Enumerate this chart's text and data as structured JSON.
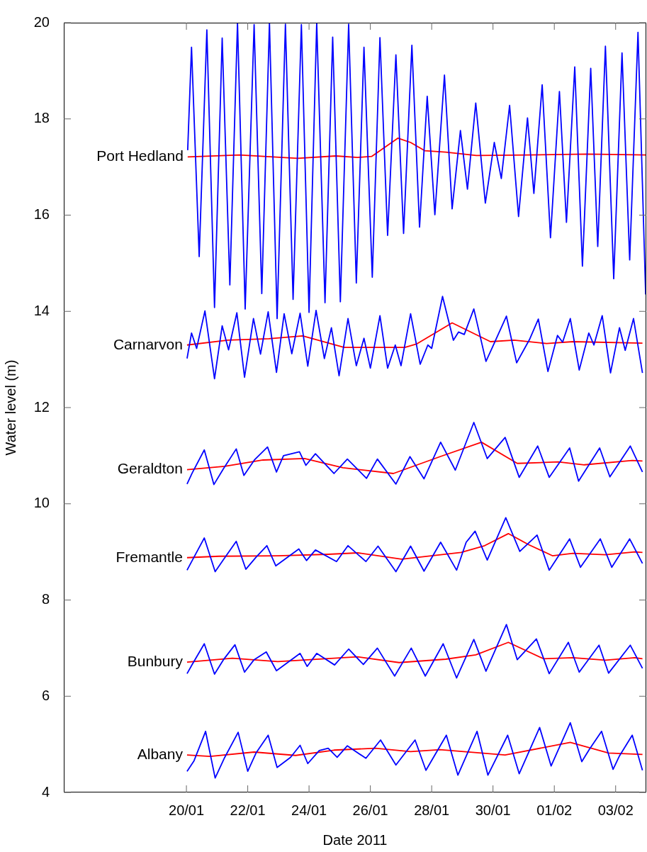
{
  "chart_data": {
    "type": "line",
    "xlabel": "Date 2011",
    "ylabel": "Water level (m)",
    "legend": false,
    "xlim": [
      "2011-01-16",
      "2011-02-04"
    ],
    "xticks": [
      {
        "value": "2011-01-20",
        "label": "20/01"
      },
      {
        "value": "2011-01-22",
        "label": "22/01"
      },
      {
        "value": "2011-01-24",
        "label": "24/01"
      },
      {
        "value": "2011-01-26",
        "label": "26/01"
      },
      {
        "value": "2011-01-28",
        "label": "28/01"
      },
      {
        "value": "2011-01-30",
        "label": "30/01"
      },
      {
        "value": "2011-02-01",
        "label": "01/02"
      },
      {
        "value": "2011-02-03",
        "label": "03/02"
      }
    ],
    "ylim": [
      4,
      20
    ],
    "yticks": [
      4,
      6,
      8,
      10,
      12,
      14,
      16,
      18,
      20
    ],
    "series": [
      {
        "color": "#0000ff",
        "x": [
          "2011-01-20T01:00",
          "2011-01-20T04:00",
          "2011-01-20T10:00",
          "2011-01-20T16:00",
          "2011-01-20T22:00",
          "2011-01-21T04:00",
          "2011-01-21T10:00",
          "2011-01-21T16:00",
          "2011-01-21T22:00",
          "2011-01-22T05:00",
          "2011-01-22T11:00",
          "2011-01-22T17:00",
          "2011-01-22T23:00",
          "2011-01-23T05:30",
          "2011-01-23T11:30",
          "2011-01-23T18:00",
          "2011-01-24T00:00",
          "2011-01-24T06:00",
          "2011-01-24T12:30",
          "2011-01-24T18:30",
          "2011-01-25T00:30",
          "2011-01-25T07:00",
          "2011-01-25T13:00",
          "2011-01-25T19:00",
          "2011-01-26T01:30",
          "2011-01-26T07:30",
          "2011-01-26T13:30",
          "2011-01-26T20:00",
          "2011-01-27T02:00",
          "2011-01-27T08:30",
          "2011-01-27T14:30",
          "2011-01-27T20:30",
          "2011-01-28T02:30",
          "2011-01-28T10:00",
          "2011-01-28T16:00",
          "2011-01-28T22:30",
          "2011-01-29T04:00",
          "2011-01-29T10:30",
          "2011-01-29T18:00",
          "2011-01-30T01:00",
          "2011-01-30T06:30",
          "2011-01-30T13:00",
          "2011-01-30T20:00",
          "2011-01-31T03:00",
          "2011-01-31T08:00",
          "2011-01-31T14:30",
          "2011-01-31T21:00",
          "2011-02-01T04:00",
          "2011-02-01T09:30",
          "2011-02-01T16:00",
          "2011-02-01T22:00",
          "2011-02-02T04:30",
          "2011-02-02T10:00",
          "2011-02-02T16:00",
          "2011-02-02T22:30",
          "2011-02-03T05:00",
          "2011-02-03T11:00",
          "2011-02-03T17:30",
          "2011-02-03T23:30"
        ],
        "values": [
          17.35,
          19.49,
          15.14,
          19.85,
          14.08,
          19.68,
          14.55,
          20.0,
          14.05,
          19.96,
          14.37,
          20.0,
          13.85,
          19.97,
          14.25,
          19.96,
          13.98,
          20.0,
          14.18,
          19.7,
          14.2,
          19.97,
          14.59,
          19.49,
          14.71,
          19.69,
          15.58,
          19.33,
          15.62,
          19.53,
          15.75,
          18.47,
          16.01,
          18.91,
          16.13,
          17.76,
          16.54,
          18.33,
          16.25,
          17.51,
          16.76,
          18.28,
          15.97,
          18.02,
          16.45,
          18.71,
          15.53,
          18.57,
          15.85,
          19.08,
          14.94,
          19.05,
          15.35,
          19.51,
          14.68,
          19.37,
          15.07,
          19.8,
          14.35
        ]
      },
      {
        "name": "Port Hedland",
        "color": "#ff0000",
        "x": [
          "2011-01-20T01:00",
          "2011-01-21T17:30",
          "2011-01-23T15:00",
          "2011-01-24T21:00",
          "2011-01-25T14:00",
          "2011-01-26T01:00",
          "2011-01-26T21:30",
          "2011-01-27T07:30",
          "2011-01-27T18:30",
          "2011-01-28T11:00",
          "2011-01-29T11:00",
          "2011-01-31T04:00",
          "2011-02-02T02:00",
          "2011-02-03T23:30"
        ],
        "values": [
          17.21,
          17.25,
          17.18,
          17.23,
          17.2,
          17.22,
          17.6,
          17.51,
          17.34,
          17.31,
          17.24,
          17.25,
          17.27,
          17.25
        ]
      },
      {
        "color": "#0000ff",
        "x": [
          "2011-01-20T00:30",
          "2011-01-20T04:00",
          "2011-01-20T08:00",
          "2011-01-20T14:30",
          "2011-01-20T22:00",
          "2011-01-21T04:00",
          "2011-01-21T09:00",
          "2011-01-21T15:30",
          "2011-01-21T21:30",
          "2011-01-22T04:30",
          "2011-01-22T10:00",
          "2011-01-22T16:00",
          "2011-01-22T22:30",
          "2011-01-23T04:30",
          "2011-01-23T10:30",
          "2011-01-23T17:00",
          "2011-01-23T23:00",
          "2011-01-24T05:30",
          "2011-01-24T12:00",
          "2011-01-24T17:30",
          "2011-01-24T23:30",
          "2011-01-25T06:30",
          "2011-01-25T13:00",
          "2011-01-25T19:00",
          "2011-01-26T00:00",
          "2011-01-26T07:30",
          "2011-01-26T13:30",
          "2011-01-26T19:30",
          "2011-01-27T00:00",
          "2011-01-27T07:30",
          "2011-01-27T15:00",
          "2011-01-27T21:00",
          "2011-01-28T00:00",
          "2011-01-28T08:30",
          "2011-01-28T17:00",
          "2011-01-28T21:00",
          "2011-01-29T01:30",
          "2011-01-29T09:00",
          "2011-01-29T18:30",
          "2011-01-30T00:00",
          "2011-01-30T10:30",
          "2011-01-30T18:30",
          "2011-01-31T04:30",
          "2011-01-31T11:30",
          "2011-01-31T19:00",
          "2011-02-01T02:30",
          "2011-02-01T06:30",
          "2011-02-01T12:30",
          "2011-02-01T19:30",
          "2011-02-02T03:00",
          "2011-02-02T07:00",
          "2011-02-02T13:30",
          "2011-02-02T20:00",
          "2011-02-03T03:00",
          "2011-02-03T07:30",
          "2011-02-03T14:00",
          "2011-02-03T21:00"
        ],
        "values": [
          13.02,
          13.55,
          13.23,
          14.01,
          12.6,
          13.7,
          13.2,
          13.97,
          12.63,
          13.85,
          13.11,
          13.99,
          12.73,
          13.95,
          13.12,
          13.96,
          12.86,
          14.02,
          13.02,
          13.66,
          12.66,
          13.85,
          12.87,
          13.44,
          12.82,
          13.91,
          12.82,
          13.3,
          12.87,
          13.95,
          12.9,
          13.3,
          13.23,
          14.31,
          13.4,
          13.57,
          13.52,
          14.05,
          12.96,
          13.28,
          13.9,
          12.93,
          13.41,
          13.84,
          12.75,
          13.5,
          13.36,
          13.85,
          12.78,
          13.55,
          13.3,
          13.91,
          12.72,
          13.66,
          13.19,
          13.85,
          12.72
        ]
      },
      {
        "name": "Carnarvon",
        "color": "#ff0000",
        "x": [
          "2011-01-20T00:30",
          "2011-01-21T08:30",
          "2011-01-22T16:30",
          "2011-01-23T19:00",
          "2011-01-25T03:30",
          "2011-01-27T03:00",
          "2011-01-27T12:00",
          "2011-01-28T16:00",
          "2011-01-29T22:00",
          "2011-01-30T16:30",
          "2011-01-31T18:00",
          "2011-02-01T14:30",
          "2011-02-03T21:00"
        ],
        "values": [
          13.3,
          13.4,
          13.43,
          13.49,
          13.25,
          13.25,
          13.32,
          13.76,
          13.37,
          13.4,
          13.33,
          13.37,
          13.34
        ]
      },
      {
        "color": "#0000ff",
        "x": [
          "2011-01-20T00:30",
          "2011-01-20T04:30",
          "2011-01-20T14:00",
          "2011-01-20T21:30",
          "2011-01-21T05:00",
          "2011-01-21T15:00",
          "2011-01-21T21:00",
          "2011-01-22T05:30",
          "2011-01-22T15:30",
          "2011-01-22T22:30",
          "2011-01-23T04:00",
          "2011-01-23T16:30",
          "2011-01-23T21:30",
          "2011-01-24T05:00",
          "2011-01-24T19:30",
          "2011-01-25T06:00",
          "2011-01-25T21:00",
          "2011-01-26T05:30",
          "2011-01-26T20:00",
          "2011-01-27T07:00",
          "2011-01-27T18:00",
          "2011-01-28T07:00",
          "2011-01-28T18:30",
          "2011-01-29T09:00",
          "2011-01-29T19:30",
          "2011-01-30T09:30",
          "2011-01-30T20:30",
          "2011-01-31T11:00",
          "2011-01-31T20:00",
          "2011-02-01T12:00",
          "2011-02-01T19:00",
          "2011-02-02T11:30",
          "2011-02-02T19:30",
          "2011-02-03T11:30",
          "2011-02-03T21:00"
        ],
        "values": [
          10.41,
          10.64,
          11.12,
          10.4,
          10.73,
          11.14,
          10.59,
          10.92,
          11.18,
          10.66,
          11.0,
          11.08,
          10.8,
          11.04,
          10.63,
          10.93,
          10.53,
          10.93,
          10.41,
          10.98,
          10.52,
          11.28,
          10.7,
          11.69,
          10.94,
          11.38,
          10.55,
          11.2,
          10.55,
          11.16,
          10.47,
          11.16,
          10.56,
          11.2,
          10.66
        ]
      },
      {
        "name": "Geraldton",
        "color": "#ff0000",
        "x": [
          "2011-01-20T00:30",
          "2011-01-21T06:00",
          "2011-01-22T12:00",
          "2011-01-23T20:30",
          "2011-01-25T02:30",
          "2011-01-26T18:00",
          "2011-01-28T06:30",
          "2011-01-29T15:00",
          "2011-01-30T19:00",
          "2011-02-01T03:00",
          "2011-02-01T23:30",
          "2011-02-03T13:00",
          "2011-02-03T21:00"
        ],
        "values": [
          10.71,
          10.78,
          10.91,
          10.94,
          10.75,
          10.63,
          10.98,
          11.28,
          10.84,
          10.87,
          10.81,
          10.9,
          10.89
        ]
      },
      {
        "color": "#0000ff",
        "x": [
          "2011-01-20T00:30",
          "2011-01-20T04:30",
          "2011-01-20T14:00",
          "2011-01-20T22:30",
          "2011-01-21T05:00",
          "2011-01-21T15:00",
          "2011-01-21T22:30",
          "2011-01-22T06:30",
          "2011-01-22T15:00",
          "2011-01-22T22:00",
          "2011-01-23T16:00",
          "2011-01-23T22:00",
          "2011-01-24T05:00",
          "2011-01-24T21:30",
          "2011-01-25T06:30",
          "2011-01-25T20:30",
          "2011-01-26T06:00",
          "2011-01-26T20:00",
          "2011-01-27T07:30",
          "2011-01-27T18:00",
          "2011-01-28T07:00",
          "2011-01-28T19:30",
          "2011-01-29T03:00",
          "2011-01-29T10:00",
          "2011-01-29T19:30",
          "2011-01-30T10:00",
          "2011-01-30T21:00",
          "2011-01-31T10:30",
          "2011-01-31T20:00",
          "2011-02-01T12:00",
          "2011-02-01T20:30",
          "2011-02-02T12:00",
          "2011-02-02T21:00",
          "2011-02-03T11:00",
          "2011-02-03T21:00"
        ],
        "values": [
          8.62,
          8.82,
          9.29,
          8.59,
          8.84,
          9.22,
          8.64,
          8.89,
          9.13,
          8.71,
          9.06,
          8.82,
          9.04,
          8.8,
          9.13,
          8.8,
          9.12,
          8.59,
          9.12,
          8.6,
          9.2,
          8.62,
          9.2,
          9.43,
          8.83,
          9.71,
          9.01,
          9.35,
          8.62,
          9.27,
          8.68,
          9.27,
          8.68,
          9.27,
          8.76
        ]
      },
      {
        "name": "Fremantle",
        "color": "#ff0000",
        "x": [
          "2011-01-20T00:30",
          "2011-01-21T01:30",
          "2011-01-22T23:30",
          "2011-01-24T15:00",
          "2011-01-25T14:00",
          "2011-01-27T00:30",
          "2011-01-28T23:00",
          "2011-01-29T17:30",
          "2011-01-30T12:00",
          "2011-01-31T04:00",
          "2011-01-31T22:30",
          "2011-02-01T14:30",
          "2011-02-02T16:00",
          "2011-02-03T15:00",
          "2011-02-03T21:00"
        ],
        "values": [
          8.88,
          8.91,
          8.92,
          8.95,
          8.98,
          8.85,
          8.99,
          9.13,
          9.38,
          9.15,
          8.92,
          8.97,
          8.94,
          9.0,
          8.99
        ]
      },
      {
        "color": "#0000ff",
        "x": [
          "2011-01-20T00:30",
          "2011-01-20T04:30",
          "2011-01-20T14:00",
          "2011-01-20T22:00",
          "2011-01-21T05:00",
          "2011-01-21T14:00",
          "2011-01-21T21:30",
          "2011-01-22T05:00",
          "2011-01-22T14:30",
          "2011-01-22T22:30",
          "2011-01-23T17:00",
          "2011-01-23T22:30",
          "2011-01-24T06:00",
          "2011-01-24T20:00",
          "2011-01-25T07:00",
          "2011-01-25T18:30",
          "2011-01-26T05:30",
          "2011-01-26T19:00",
          "2011-01-27T08:00",
          "2011-01-27T19:00",
          "2011-01-28T09:00",
          "2011-01-28T19:30",
          "2011-01-29T09:00",
          "2011-01-29T18:30",
          "2011-01-30T10:30",
          "2011-01-30T19:00",
          "2011-01-31T10:00",
          "2011-01-31T20:00",
          "2011-02-01T11:00",
          "2011-02-01T19:30",
          "2011-02-02T11:00",
          "2011-02-02T18:30",
          "2011-02-03T11:30",
          "2011-02-03T21:00"
        ],
        "values": [
          6.47,
          6.66,
          7.09,
          6.46,
          6.76,
          7.07,
          6.5,
          6.76,
          6.92,
          6.53,
          6.89,
          6.62,
          6.89,
          6.65,
          6.98,
          6.66,
          7.0,
          6.42,
          7.0,
          6.42,
          7.09,
          6.38,
          7.18,
          6.52,
          7.49,
          6.76,
          7.19,
          6.47,
          7.12,
          6.5,
          7.06,
          6.48,
          7.06,
          6.58
        ]
      },
      {
        "name": "Bunbury",
        "color": "#ff0000",
        "x": [
          "2011-01-20T00:30",
          "2011-01-21T12:00",
          "2011-01-22T23:30",
          "2011-01-25T14:00",
          "2011-01-26T22:30",
          "2011-01-28T11:00",
          "2011-01-29T10:30",
          "2011-01-30T12:00",
          "2011-01-31T15:30",
          "2011-02-01T14:30",
          "2011-02-02T16:00",
          "2011-02-03T15:00",
          "2011-02-03T21:00"
        ],
        "values": [
          6.71,
          6.79,
          6.72,
          6.82,
          6.7,
          6.77,
          6.86,
          7.12,
          6.78,
          6.8,
          6.75,
          6.8,
          6.78
        ]
      },
      {
        "color": "#0000ff",
        "x": [
          "2011-01-20T00:30",
          "2011-01-20T06:00",
          "2011-01-20T15:00",
          "2011-01-20T22:30",
          "2011-01-21T06:00",
          "2011-01-21T16:30",
          "2011-01-22T00:00",
          "2011-01-22T06:30",
          "2011-01-22T16:00",
          "2011-01-22T23:00",
          "2011-01-23T09:30",
          "2011-01-23T17:00",
          "2011-01-23T23:00",
          "2011-01-24T08:00",
          "2011-01-24T15:00",
          "2011-01-24T22:00",
          "2011-01-25T06:00",
          "2011-01-25T20:30",
          "2011-01-26T08:00",
          "2011-01-26T20:00",
          "2011-01-27T11:00",
          "2011-01-27T19:30",
          "2011-01-28T11:30",
          "2011-01-28T20:30",
          "2011-01-29T11:30",
          "2011-01-29T20:00",
          "2011-01-30T11:30",
          "2011-01-30T20:30",
          "2011-01-31T12:30",
          "2011-01-31T21:30",
          "2011-02-01T12:30",
          "2011-02-01T21:30",
          "2011-02-02T03:30",
          "2011-02-02T13:00",
          "2011-02-02T22:00",
          "2011-02-03T03:00",
          "2011-02-03T13:00",
          "2011-02-03T21:00"
        ],
        "values": [
          4.44,
          4.66,
          5.27,
          4.3,
          4.73,
          5.25,
          4.44,
          4.82,
          5.19,
          4.52,
          4.73,
          4.98,
          4.6,
          4.87,
          4.92,
          4.73,
          4.97,
          4.71,
          5.09,
          4.57,
          5.09,
          4.46,
          5.19,
          4.36,
          5.27,
          4.36,
          5.19,
          4.39,
          5.35,
          4.55,
          5.45,
          4.64,
          4.9,
          5.27,
          4.48,
          4.76,
          5.19,
          4.46
        ]
      },
      {
        "name": "Albany",
        "color": "#ff0000",
        "x": [
          "2011-01-20T00:30",
          "2011-01-20T18:30",
          "2011-01-22T05:00",
          "2011-01-23T13:30",
          "2011-01-24T19:30",
          "2011-01-26T04:00",
          "2011-01-27T07:30",
          "2011-01-28T06:30",
          "2011-01-30T09:30",
          "2011-02-01T12:30",
          "2011-02-02T18:30",
          "2011-02-03T21:00"
        ],
        "values": [
          4.78,
          4.75,
          4.84,
          4.77,
          4.88,
          4.92,
          4.85,
          4.89,
          4.78,
          5.04,
          4.82,
          4.79
        ]
      }
    ]
  }
}
